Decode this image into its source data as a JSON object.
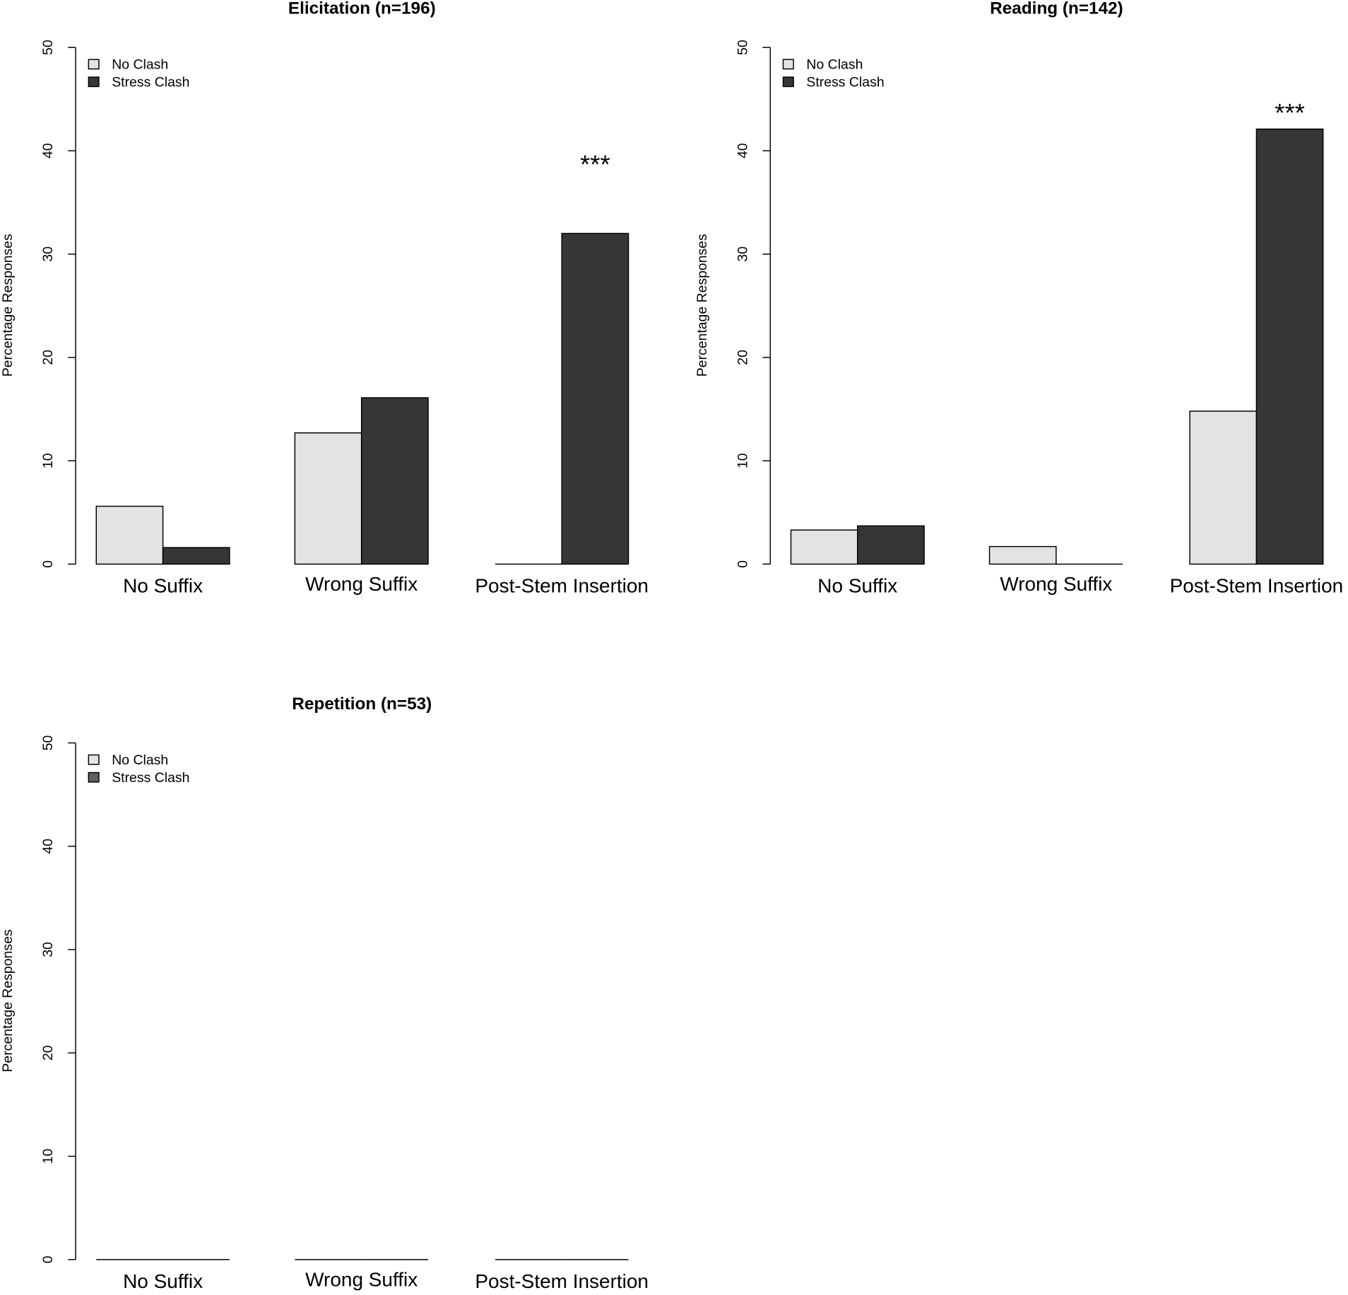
{
  "colors": {
    "no_clash": "#e3e3e3",
    "stress_clash": "#363636",
    "stress_clash_legend_repetition": "#5f5f5f",
    "axis": "#000000"
  },
  "chart_data": [
    {
      "type": "bar",
      "title": "Elicitation (n=196)",
      "ylabel": "Percentage Responses",
      "ylim": [
        0,
        50
      ],
      "yticks": [
        "0",
        "10",
        "20",
        "30",
        "40",
        "50"
      ],
      "categories": [
        "No Suffix",
        "Wrong Suffix",
        "Post-Stem Insertion"
      ],
      "series": [
        {
          "name": "No Clash",
          "values": [
            5.6,
            12.7,
            0
          ]
        },
        {
          "name": "Stress Clash",
          "values": [
            1.6,
            16.1,
            32.0
          ]
        }
      ],
      "legend": {
        "position": "top-left",
        "entries": [
          "No Clash",
          "Stress Clash"
        ]
      },
      "annotations": [
        {
          "text": "***",
          "category": "Post-Stem Insertion",
          "y": 39
        }
      ],
      "grid": false
    },
    {
      "type": "bar",
      "title": "Reading (n=142)",
      "ylabel": "Percentage Responses",
      "ylim": [
        0,
        50
      ],
      "yticks": [
        "0",
        "10",
        "20",
        "30",
        "40",
        "50"
      ],
      "categories": [
        "No Suffix",
        "Wrong Suffix",
        "Post-Stem Insertion"
      ],
      "series": [
        {
          "name": "No Clash",
          "values": [
            3.3,
            1.7,
            14.8
          ]
        },
        {
          "name": "Stress Clash",
          "values": [
            3.7,
            0,
            42.1
          ]
        }
      ],
      "legend": {
        "position": "top-left",
        "entries": [
          "No Clash",
          "Stress Clash"
        ]
      },
      "annotations": [
        {
          "text": "***",
          "category": "Post-Stem Insertion",
          "y": 44
        }
      ],
      "grid": false
    },
    {
      "type": "bar",
      "title": "Repetition (n=53)",
      "ylabel": "Percentage Responses",
      "ylim": [
        0,
        50
      ],
      "yticks": [
        "0",
        "10",
        "20",
        "30",
        "40",
        "50"
      ],
      "categories": [
        "No Suffix",
        "Wrong Suffix",
        "Post-Stem Insertion"
      ],
      "series": [
        {
          "name": "No Clash",
          "values": [
            0,
            0,
            0
          ]
        },
        {
          "name": "Stress Clash",
          "values": [
            0,
            0,
            0
          ]
        }
      ],
      "legend": {
        "position": "top-left",
        "entries": [
          "No Clash",
          "Stress Clash"
        ]
      },
      "annotations": [],
      "grid": false
    }
  ]
}
